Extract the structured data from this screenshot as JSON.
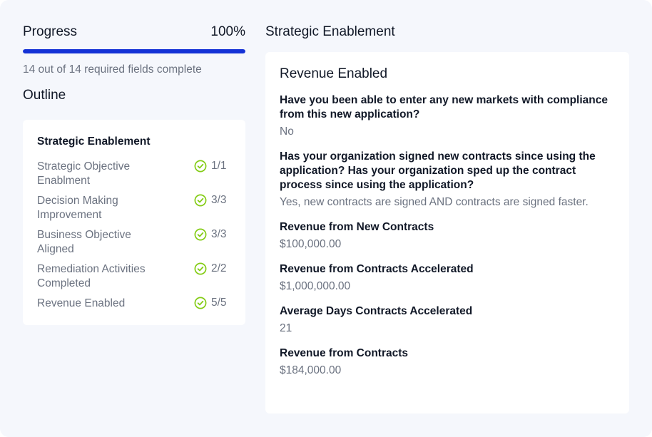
{
  "progress": {
    "title": "Progress",
    "percent_label": "100%",
    "value": 1.0,
    "summary": "14 out of 14 required fields complete",
    "bar_color": "#1432d6"
  },
  "outline": {
    "title": "Outline",
    "section": "Strategic Enablement",
    "items": [
      {
        "label": "Strategic Objective Enablment",
        "count": "1/1",
        "icon": "check-circle-icon"
      },
      {
        "label": "Decision Making Improvement",
        "count": "3/3",
        "icon": "check-circle-icon"
      },
      {
        "label": "Business Objective Aligned",
        "count": "3/3",
        "icon": "check-circle-icon"
      },
      {
        "label": "Remediation Activities Completed",
        "count": "2/2",
        "icon": "check-circle-icon"
      },
      {
        "label": "Revenue Enabled",
        "count": "5/5",
        "icon": "check-circle-icon"
      }
    ],
    "check_color": "#84cc16"
  },
  "main": {
    "section_title": "Strategic Enablement",
    "panel_title": "Revenue Enabled",
    "qa": [
      {
        "question": "Have you been able to enter any new markets with compliance from this new application?",
        "answer": "No"
      },
      {
        "question": "Has your organization signed new contracts since using the application? Has your organization sped up the contract process since using the application?",
        "answer": "Yes, new contracts are signed AND contracts are signed faster."
      },
      {
        "question": "Revenue from New Contracts",
        "answer": "$100,000.00"
      },
      {
        "question": "Revenue from Contracts Accelerated",
        "answer": "$1,000,000.00"
      },
      {
        "question": "Average Days Contracts Accelerated",
        "answer": "21"
      },
      {
        "question": "Revenue from Contracts",
        "answer": "$184,000.00"
      }
    ]
  }
}
